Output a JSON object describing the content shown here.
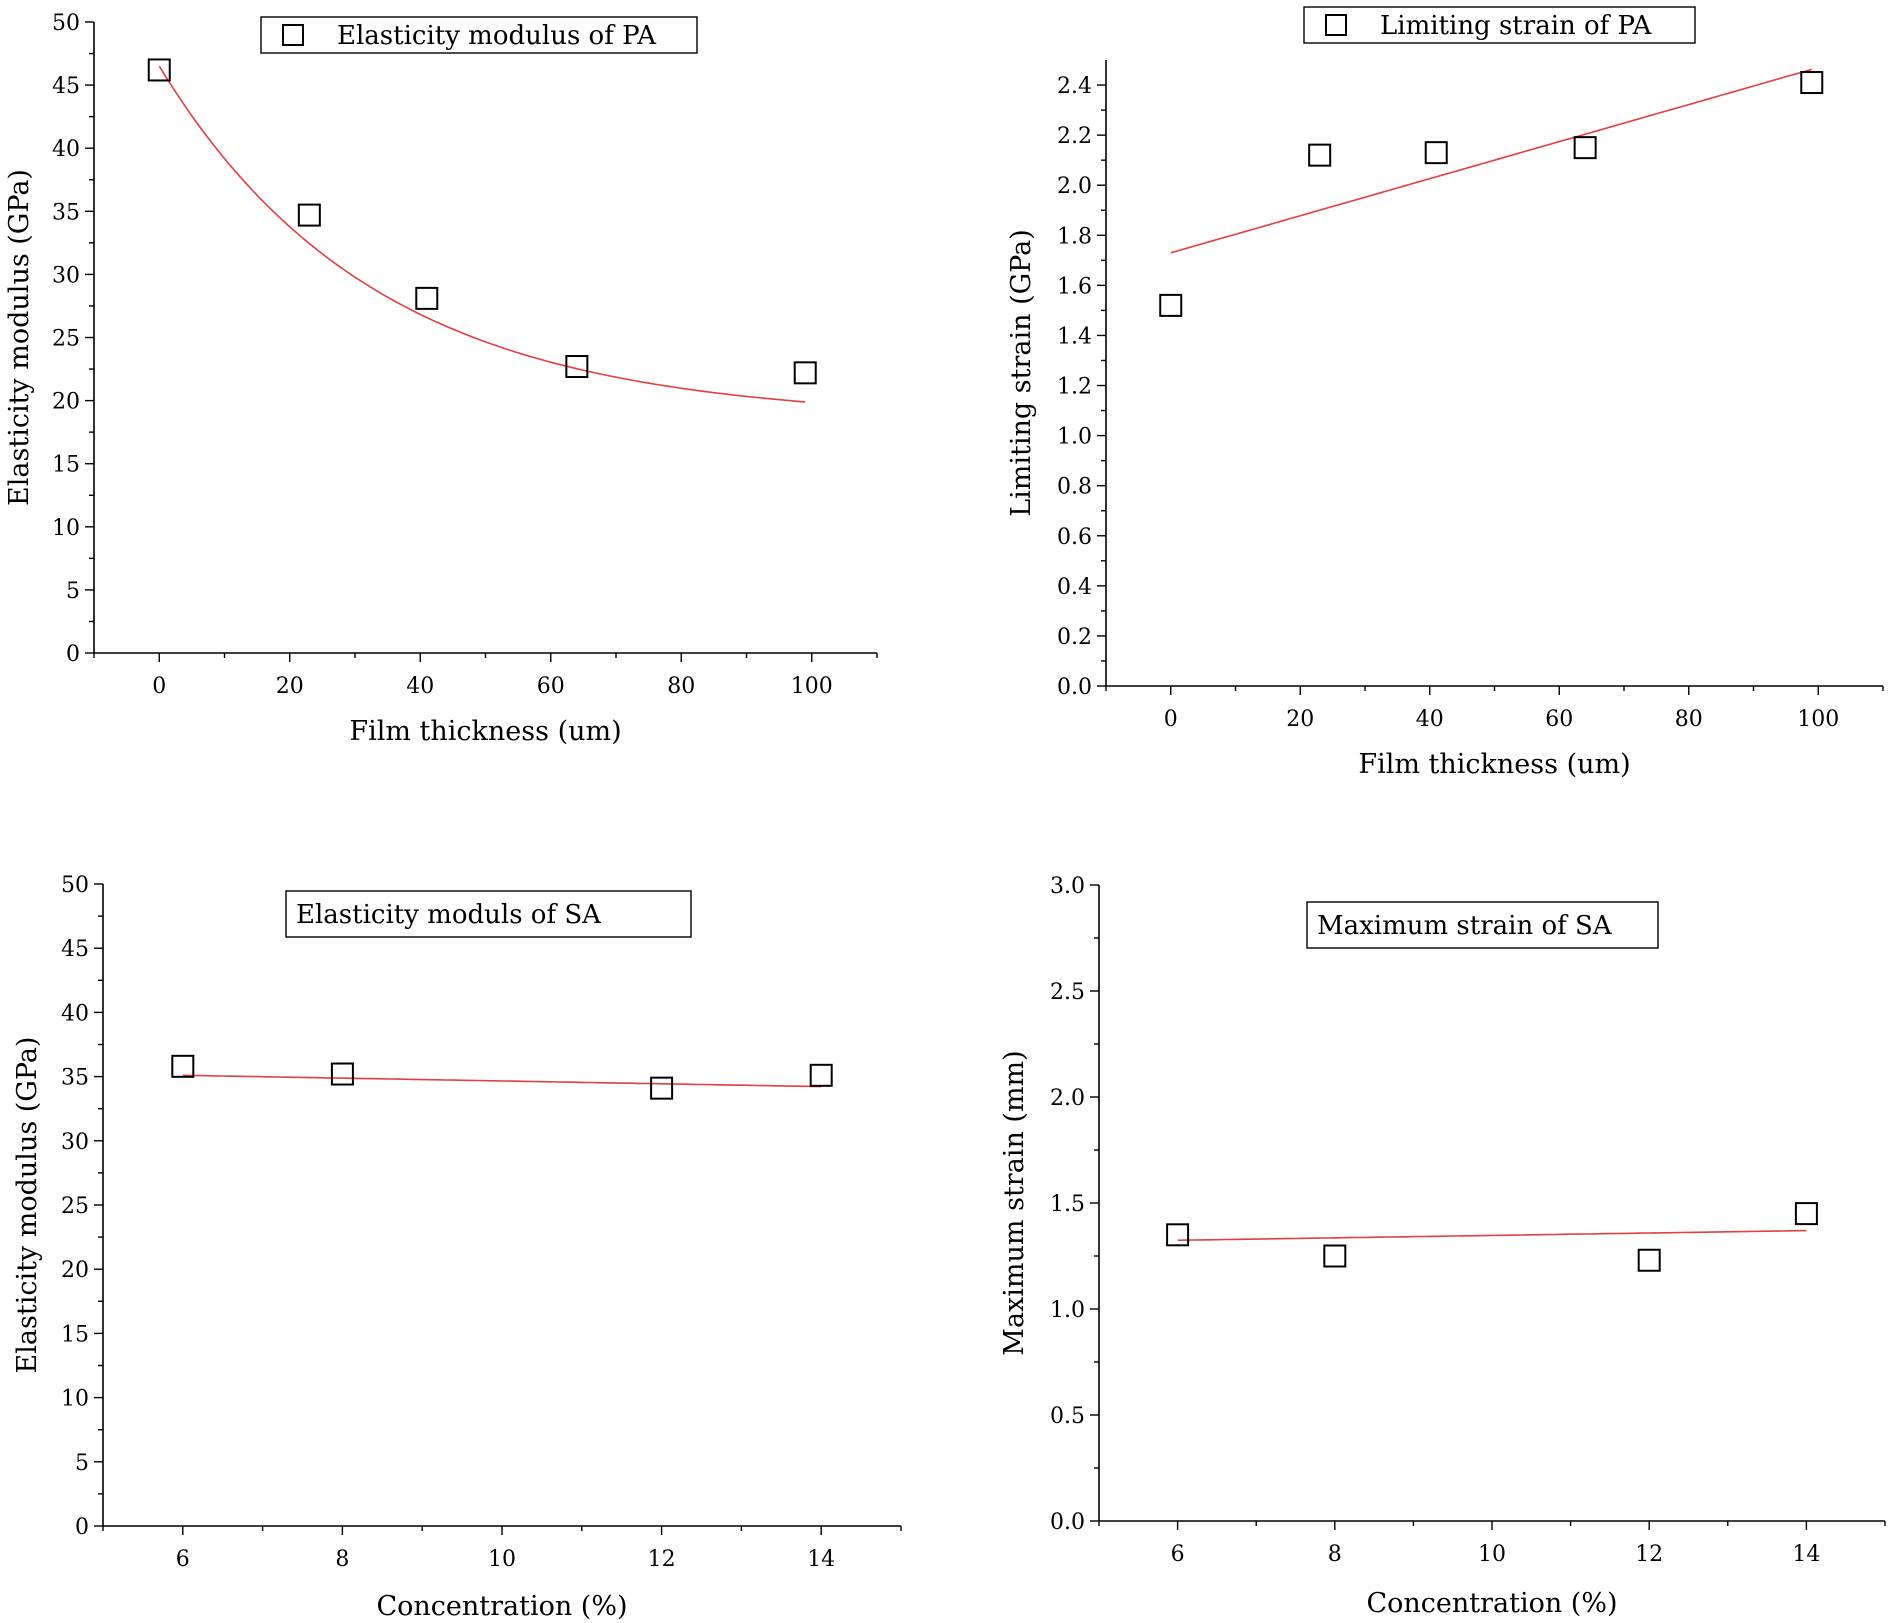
{
  "chart_data": [
    {
      "type": "scatter",
      "legend": "Elasticity modulus of PA",
      "legend_marker": true,
      "xlabel": "Film thickness (um)",
      "ylabel": "Elasticity modulus (GPa)",
      "xlim": [
        -10,
        110
      ],
      "ylim": [
        0,
        50
      ],
      "xticks": [
        0,
        20,
        40,
        60,
        80,
        100
      ],
      "yticks": [
        0,
        5,
        10,
        15,
        20,
        25,
        30,
        35,
        40,
        45,
        50
      ],
      "x": [
        0,
        23,
        41,
        64,
        99
      ],
      "y": [
        46.2,
        34.7,
        28.1,
        22.7,
        22.2
      ],
      "fit": {
        "type": "exponential",
        "y0": 18.5,
        "A": 28.0,
        "t": 33.0,
        "x_range": [
          0,
          99
        ]
      }
    },
    {
      "type": "scatter",
      "legend": "Limiting strain of PA",
      "legend_marker": true,
      "xlabel": "Film thickness (um)",
      "ylabel": "Limiting strain (GPa)",
      "xlim": [
        -10,
        110
      ],
      "ylim": [
        0,
        2.5
      ],
      "xticks": [
        0,
        20,
        40,
        60,
        80,
        100
      ],
      "yticks": [
        0.0,
        0.2,
        0.4,
        0.6,
        0.8,
        1.0,
        1.2,
        1.4,
        1.6,
        1.8,
        2.0,
        2.2,
        2.4
      ],
      "x": [
        0,
        23,
        41,
        64,
        99
      ],
      "y": [
        1.52,
        2.12,
        2.13,
        2.15,
        2.41
      ],
      "fit": {
        "type": "linear",
        "intercept": 1.73,
        "slope": 0.0074,
        "x_range": [
          0,
          99
        ]
      }
    },
    {
      "type": "scatter",
      "legend": "Elasticity moduls of SA",
      "legend_marker": false,
      "xlabel": "Concentration (%)",
      "ylabel": "Elasticity modulus (GPa)",
      "xlim": [
        5,
        15
      ],
      "ylim": [
        0,
        50
      ],
      "xticks": [
        6,
        8,
        10,
        12,
        14
      ],
      "yticks": [
        0,
        5,
        10,
        15,
        20,
        25,
        30,
        35,
        40,
        45,
        50
      ],
      "x": [
        6,
        8,
        12,
        14
      ],
      "y": [
        35.8,
        35.2,
        34.1,
        35.1
      ],
      "fit": {
        "type": "linear",
        "intercept": 35.76,
        "slope": -0.11,
        "x_range": [
          6,
          14
        ]
      }
    },
    {
      "type": "scatter",
      "legend": "Maximum strain of SA",
      "legend_marker": false,
      "xlabel": "Concentration (%)",
      "ylabel": "Maximum strain (mm)",
      "xlim": [
        5,
        15
      ],
      "ylim": [
        0,
        3.0
      ],
      "xticks": [
        6,
        8,
        10,
        12,
        14
      ],
      "yticks": [
        0.0,
        0.5,
        1.0,
        1.5,
        2.0,
        2.5,
        3.0
      ],
      "ytick_decimals": 1,
      "x": [
        6,
        8,
        12,
        14
      ],
      "y": [
        1.35,
        1.25,
        1.23,
        1.45
      ],
      "fit": {
        "type": "linear",
        "intercept": 1.29,
        "slope": 0.0057,
        "x_range": [
          6,
          14
        ]
      }
    }
  ]
}
